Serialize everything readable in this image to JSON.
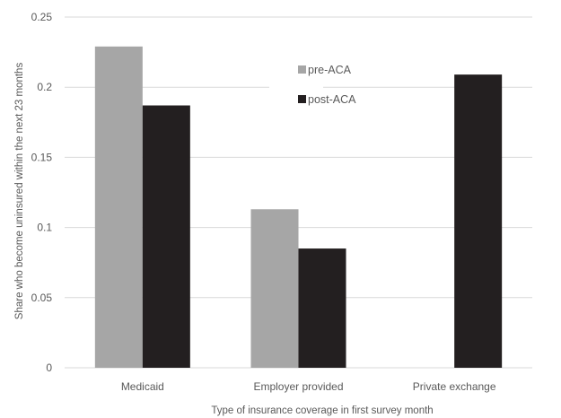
{
  "chart_data": {
    "type": "bar",
    "title": "",
    "xlabel": "Type of insurance coverage in first survey month",
    "ylabel": "Share who become uninsured within the next 23 months",
    "categories": [
      "Medicaid",
      "Employer provided",
      "Private exchange"
    ],
    "series": [
      {
        "name": "pre-ACA",
        "values": [
          0.229,
          0.113,
          null
        ],
        "color": "#a6a6a6"
      },
      {
        "name": "post-ACA",
        "values": [
          0.187,
          0.085,
          0.209
        ],
        "color": "#231f20"
      }
    ],
    "ylim": [
      0,
      0.25
    ],
    "yticks": [
      0,
      0.05,
      0.1,
      0.15,
      0.2,
      0.25
    ],
    "ytick_labels": [
      "0",
      "0.05",
      "0.1",
      "0.15",
      "0.2",
      "0.25"
    ],
    "grid": true,
    "legend_position": "top-center"
  }
}
